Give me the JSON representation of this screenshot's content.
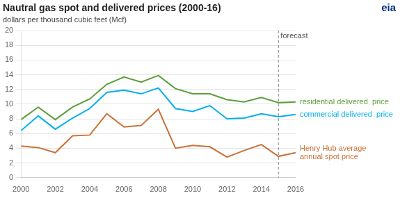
{
  "chart_data": {
    "type": "line",
    "title": "Nautral gas spot and delivered prices (2000-16)",
    "subtitle": "dollars per thousand cubic feet (Mcf)",
    "x": [
      2000,
      2001,
      2002,
      2003,
      2004,
      2005,
      2006,
      2007,
      2008,
      2009,
      2010,
      2011,
      2012,
      2013,
      2014,
      2015,
      2016
    ],
    "series": [
      {
        "name": "residential delivered  price",
        "color": "#5a9e3a",
        "values": [
          7.9,
          9.6,
          7.9,
          9.6,
          10.7,
          12.7,
          13.7,
          13.0,
          13.9,
          12.1,
          11.4,
          11.4,
          10.6,
          10.3,
          10.9,
          10.2,
          10.3
        ]
      },
      {
        "name": "commercial delivered  price",
        "color": "#00aeef",
        "values": [
          6.4,
          8.4,
          6.6,
          8.1,
          9.4,
          11.6,
          11.9,
          11.4,
          12.2,
          9.4,
          9.0,
          9.8,
          8.0,
          8.1,
          8.7,
          8.3,
          8.6
        ]
      },
      {
        "name": "Henry Hub average\nannual spot price",
        "color": "#c87137",
        "values": [
          4.3,
          4.1,
          3.4,
          5.7,
          5.8,
          8.7,
          6.9,
          7.1,
          9.3,
          4.0,
          4.4,
          4.2,
          2.8,
          3.7,
          4.5,
          2.9,
          3.4
        ]
      }
    ],
    "annotations": [
      {
        "type": "vline",
        "x": 2015,
        "text": "forecast"
      },
      {
        "text": "eia"
      }
    ],
    "xlim": [
      2000,
      2016
    ],
    "xticks": [
      2000,
      2002,
      2004,
      2006,
      2008,
      2010,
      2012,
      2014,
      2016
    ],
    "ylim": [
      0,
      20
    ],
    "yticks": [
      0,
      2,
      4,
      6,
      8,
      10,
      12,
      14,
      16,
      18,
      20
    ],
    "grid": true
  }
}
